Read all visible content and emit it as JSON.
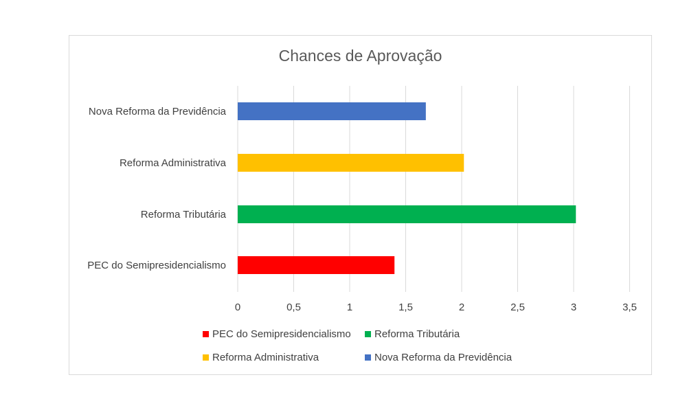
{
  "chart_data": {
    "type": "bar",
    "orientation": "horizontal",
    "title": "Chances de Aprovação",
    "categories": [
      "PEC do Semipresidencialismo",
      "Reforma Tributária",
      "Reforma Administrativa",
      "Nova Reforma da Previdência"
    ],
    "values": [
      1.4,
      3.02,
      2.02,
      1.68
    ],
    "colors": [
      "#ff0000",
      "#00b050",
      "#ffc000",
      "#4472c4"
    ],
    "xlim": [
      0,
      3.5
    ],
    "xticks": [
      "0",
      "0,5",
      "1",
      "1,5",
      "2",
      "2,5",
      "3",
      "3,5"
    ],
    "xtick_values": [
      0,
      0.5,
      1,
      1.5,
      2,
      2.5,
      3,
      3.5
    ],
    "grid": "vertical",
    "legend_position": "bottom",
    "legend": [
      {
        "label": "PEC do Semipresidencialismo",
        "color": "#ff0000"
      },
      {
        "label": "Reforma Tributária",
        "color": "#00b050"
      },
      {
        "label": "Reforma Administrativa",
        "color": "#ffc000"
      },
      {
        "label": "Nova Reforma da Previdência",
        "color": "#4472c4"
      }
    ]
  }
}
